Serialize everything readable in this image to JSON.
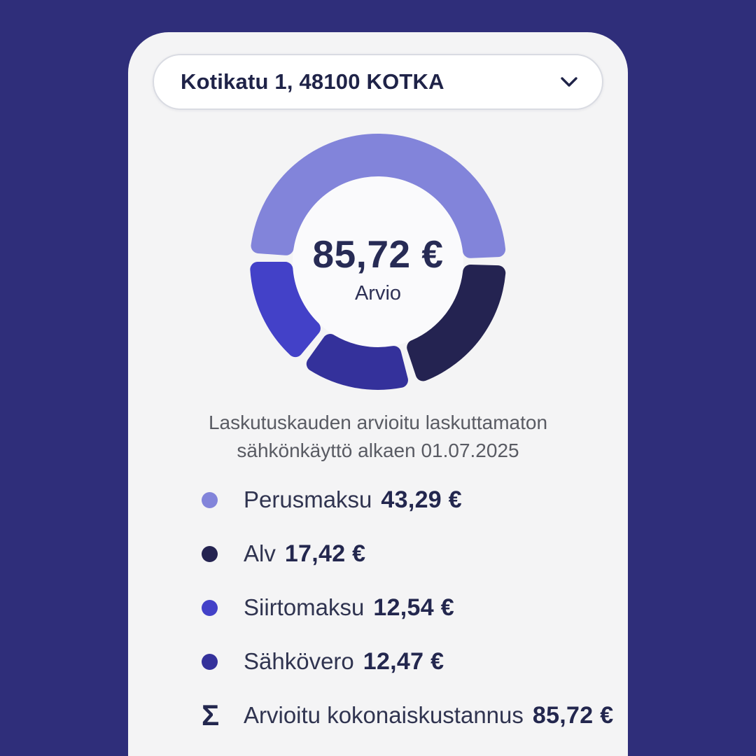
{
  "theme": {
    "background": "#2f2e7a",
    "card_background": "#f4f4f5",
    "text_dark": "#23274e",
    "text_gray": "#595b63"
  },
  "address_selector": {
    "value": "Kotikatu 1, 48100 KOTKA",
    "icon": "chevron-down-icon"
  },
  "chart_data": {
    "type": "pie",
    "variant": "donut",
    "center_value": "85,72 €",
    "center_label": "Arvio",
    "total": 85.72,
    "currency": "EUR",
    "segments": [
      {
        "label": "Perusmaksu",
        "value": 43.29,
        "display": "43,29 €",
        "color": "#8284da"
      },
      {
        "label": "Alv",
        "value": 17.42,
        "display": "17,42 €",
        "color": "#242351"
      },
      {
        "label": "Siirtomaksu",
        "value": 12.54,
        "display": "12,54 €",
        "color": "#4341c8"
      },
      {
        "label": "Sähkövero",
        "value": 12.47,
        "display": "12,47 €",
        "color": "#34319b"
      }
    ],
    "clockwise_order": [
      0,
      1,
      3,
      2
    ],
    "start_angle_deg": -86,
    "gap_deg": 4,
    "legend_position": "bottom-left"
  },
  "description": {
    "lines": [
      "Laskutuskauden arvioitu laskuttamaton",
      "sähkönkäyttö alkaen 01.07.2025"
    ]
  },
  "total_row": {
    "symbol": "Σ",
    "label": "Arvioitu kokonaiskustannus",
    "display": "85,72 €"
  }
}
